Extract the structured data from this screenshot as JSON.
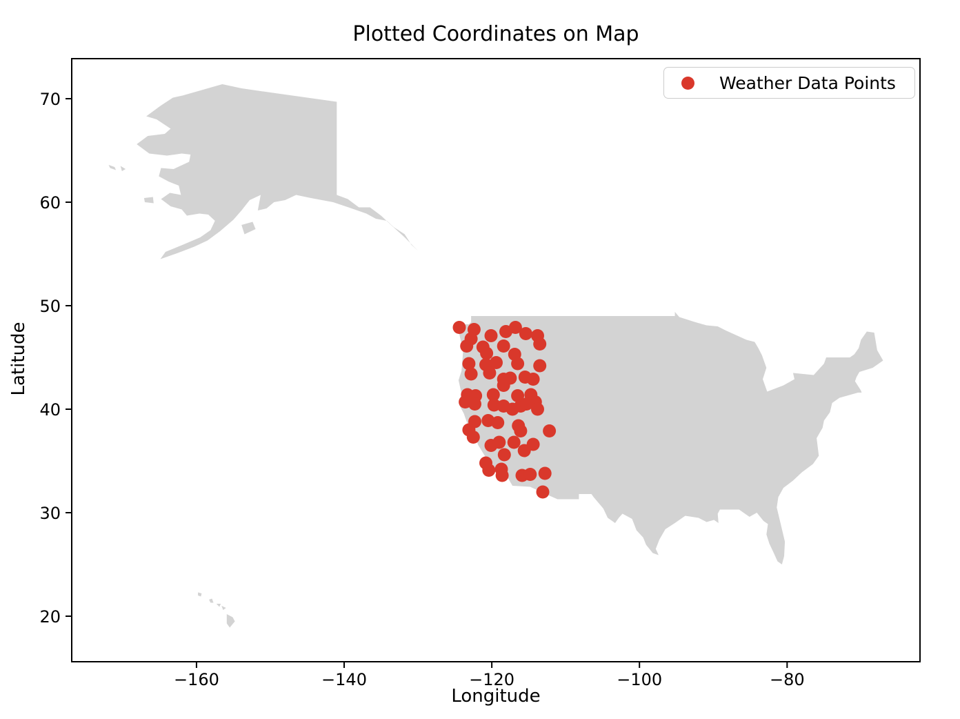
{
  "figure": {
    "title": "Plotted Coordinates on Map",
    "xlabel": "Longitude",
    "ylabel": "Latitude"
  },
  "legend": {
    "label": "Weather Data Points",
    "marker": "red-dot-icon"
  },
  "colors": {
    "marker": "#d9382b",
    "land": "#d3d3d3",
    "spine": "#000000",
    "background": "#ffffff",
    "legend_border": "#cccccc"
  },
  "chart_data": {
    "type": "scatter",
    "title": "Plotted Coordinates on Map",
    "xlabel": "Longitude",
    "ylabel": "Latitude",
    "legend": {
      "label": "Weather Data Points",
      "position": "upper right"
    },
    "grid": false,
    "xlim": [
      -176.9,
      -62.0
    ],
    "ylim": [
      15.6,
      73.87
    ],
    "xticks": [
      -160,
      -140,
      -120,
      -100,
      -80
    ],
    "yticks": [
      20,
      30,
      40,
      50,
      60,
      70
    ],
    "marker_color": "#d9382b",
    "marker_radius_px": 9.5,
    "series": [
      {
        "name": "Weather Data Points",
        "points_lon_lat": [
          [
            -124.4,
            47.9
          ],
          [
            -122.4,
            47.7
          ],
          [
            -122.8,
            46.8
          ],
          [
            -120.1,
            47.1
          ],
          [
            -118.1,
            47.5
          ],
          [
            -116.8,
            47.9
          ],
          [
            -115.4,
            47.3
          ],
          [
            -113.8,
            47.1
          ],
          [
            -113.5,
            46.3
          ],
          [
            -123.4,
            46.1
          ],
          [
            -121.2,
            46.0
          ],
          [
            -118.4,
            46.1
          ],
          [
            -120.7,
            45.4
          ],
          [
            -116.9,
            45.3
          ],
          [
            -116.5,
            44.4
          ],
          [
            -123.1,
            44.4
          ],
          [
            -120.8,
            44.3
          ],
          [
            -119.4,
            44.5
          ],
          [
            -113.5,
            44.2
          ],
          [
            -122.8,
            43.4
          ],
          [
            -120.3,
            43.5
          ],
          [
            -118.4,
            42.9
          ],
          [
            -117.5,
            43.0
          ],
          [
            -115.5,
            43.1
          ],
          [
            -114.4,
            42.9
          ],
          [
            -123.3,
            41.4
          ],
          [
            -122.2,
            41.3
          ],
          [
            -119.8,
            41.4
          ],
          [
            -118.4,
            42.3
          ],
          [
            -123.6,
            40.7
          ],
          [
            -119.7,
            40.4
          ],
          [
            -118.4,
            40.3
          ],
          [
            -116.5,
            41.3
          ],
          [
            -114.7,
            41.4
          ],
          [
            -114.1,
            40.7
          ],
          [
            -116.1,
            40.3
          ],
          [
            -122.3,
            40.5
          ],
          [
            -117.2,
            40.0
          ],
          [
            -115.3,
            40.5
          ],
          [
            -113.8,
            40.0
          ],
          [
            -122.3,
            38.8
          ],
          [
            -120.5,
            38.9
          ],
          [
            -119.2,
            38.7
          ],
          [
            -123.1,
            38.0
          ],
          [
            -122.5,
            37.3
          ],
          [
            -116.4,
            38.4
          ],
          [
            -116.1,
            37.9
          ],
          [
            -112.2,
            37.9
          ],
          [
            -120.1,
            36.5
          ],
          [
            -119.0,
            36.8
          ],
          [
            -117.0,
            36.8
          ],
          [
            -114.4,
            36.6
          ],
          [
            -115.6,
            36.0
          ],
          [
            -118.3,
            35.6
          ],
          [
            -120.8,
            34.8
          ],
          [
            -120.4,
            34.1
          ],
          [
            -118.7,
            34.2
          ],
          [
            -118.6,
            33.6
          ],
          [
            -115.9,
            33.6
          ],
          [
            -114.8,
            33.7
          ],
          [
            -112.8,
            33.8
          ],
          [
            -113.1,
            32.0
          ]
        ]
      }
    ],
    "basemap": {
      "fill": "#d3d3d3",
      "shapes": {
        "contiguous_us": [
          [
            -122.8,
            49.0
          ],
          [
            -95.2,
            49.0
          ],
          [
            -95.2,
            49.4
          ],
          [
            -94.6,
            48.9
          ],
          [
            -92.4,
            48.4
          ],
          [
            -90.9,
            48.1
          ],
          [
            -89.4,
            48.0
          ],
          [
            -88.3,
            47.6
          ],
          [
            -85.5,
            46.7
          ],
          [
            -84.4,
            46.5
          ],
          [
            -83.9,
            45.9
          ],
          [
            -83.4,
            45.2
          ],
          [
            -82.8,
            44.0
          ],
          [
            -83.3,
            42.9
          ],
          [
            -82.7,
            41.7
          ],
          [
            -80.5,
            42.3
          ],
          [
            -79.0,
            42.9
          ],
          [
            -79.2,
            43.5
          ],
          [
            -76.4,
            43.3
          ],
          [
            -75.0,
            44.4
          ],
          [
            -74.7,
            45.0
          ],
          [
            -71.5,
            45.0
          ],
          [
            -70.9,
            45.3
          ],
          [
            -70.3,
            45.9
          ],
          [
            -70.0,
            46.7
          ],
          [
            -69.2,
            47.5
          ],
          [
            -68.2,
            47.4
          ],
          [
            -67.8,
            45.7
          ],
          [
            -67.4,
            45.2
          ],
          [
            -67.0,
            44.7
          ],
          [
            -68.4,
            44.0
          ],
          [
            -70.2,
            43.6
          ],
          [
            -70.6,
            43.1
          ],
          [
            -70.8,
            42.7
          ],
          [
            -70.0,
            41.8
          ],
          [
            -69.9,
            41.6
          ],
          [
            -70.4,
            41.6
          ],
          [
            -71.4,
            41.4
          ],
          [
            -72.9,
            41.1
          ],
          [
            -73.9,
            40.6
          ],
          [
            -74.2,
            39.7
          ],
          [
            -75.0,
            38.9
          ],
          [
            -75.2,
            38.2
          ],
          [
            -76.0,
            37.2
          ],
          [
            -75.7,
            35.5
          ],
          [
            -76.5,
            34.7
          ],
          [
            -78.0,
            33.9
          ],
          [
            -79.2,
            33.1
          ],
          [
            -80.5,
            32.4
          ],
          [
            -81.2,
            31.5
          ],
          [
            -81.4,
            30.5
          ],
          [
            -80.9,
            29.0
          ],
          [
            -80.3,
            27.2
          ],
          [
            -80.4,
            25.8
          ],
          [
            -80.7,
            25.0
          ],
          [
            -81.3,
            25.3
          ],
          [
            -81.8,
            26.1
          ],
          [
            -82.4,
            27.0
          ],
          [
            -82.8,
            27.9
          ],
          [
            -82.6,
            28.9
          ],
          [
            -83.2,
            29.2
          ],
          [
            -84.1,
            30.0
          ],
          [
            -85.1,
            29.6
          ],
          [
            -86.5,
            30.3
          ],
          [
            -88.0,
            30.3
          ],
          [
            -89.1,
            30.3
          ],
          [
            -89.4,
            29.9
          ],
          [
            -89.3,
            29.0
          ],
          [
            -89.9,
            29.3
          ],
          [
            -90.9,
            29.1
          ],
          [
            -92.0,
            29.5
          ],
          [
            -93.8,
            29.7
          ],
          [
            -95.2,
            29.0
          ],
          [
            -96.5,
            28.4
          ],
          [
            -97.3,
            27.4
          ],
          [
            -97.8,
            26.5
          ],
          [
            -97.4,
            25.9
          ],
          [
            -98.2,
            26.1
          ],
          [
            -99.1,
            26.9
          ],
          [
            -99.5,
            27.6
          ],
          [
            -100.4,
            28.3
          ],
          [
            -101.0,
            29.4
          ],
          [
            -102.3,
            29.9
          ],
          [
            -102.8,
            29.5
          ],
          [
            -103.3,
            29.0
          ],
          [
            -104.3,
            29.5
          ],
          [
            -104.9,
            30.4
          ],
          [
            -106.2,
            31.5
          ],
          [
            -106.5,
            31.8
          ],
          [
            -108.2,
            31.8
          ],
          [
            -108.2,
            31.3
          ],
          [
            -111.1,
            31.3
          ],
          [
            -113.0,
            31.9
          ],
          [
            -114.8,
            32.5
          ],
          [
            -117.2,
            32.6
          ],
          [
            -118.1,
            33.7
          ],
          [
            -119.0,
            34.1
          ],
          [
            -120.5,
            34.5
          ],
          [
            -120.7,
            35.2
          ],
          [
            -121.9,
            36.6
          ],
          [
            -122.0,
            37.0
          ],
          [
            -122.5,
            37.8
          ],
          [
            -123.0,
            38.0
          ],
          [
            -123.8,
            39.6
          ],
          [
            -124.4,
            40.4
          ],
          [
            -124.1,
            41.5
          ],
          [
            -124.5,
            42.8
          ],
          [
            -124.1,
            43.7
          ],
          [
            -123.9,
            45.5
          ],
          [
            -124.1,
            46.3
          ],
          [
            -124.7,
            48.2
          ],
          [
            -123.1,
            48.2
          ],
          [
            -122.8,
            48.4
          ]
        ],
        "alaska": [
          [
            -166.8,
            68.3
          ],
          [
            -164.9,
            69.3
          ],
          [
            -163.2,
            70.1
          ],
          [
            -161.9,
            70.3
          ],
          [
            -156.5,
            71.4
          ],
          [
            -153.9,
            71.0
          ],
          [
            -150.0,
            70.6
          ],
          [
            -145.0,
            70.1
          ],
          [
            -141.0,
            69.7
          ],
          [
            -141.0,
            60.7
          ],
          [
            -139.5,
            60.3
          ],
          [
            -138.0,
            59.5
          ],
          [
            -136.5,
            59.5
          ],
          [
            -135.0,
            58.7
          ],
          [
            -133.5,
            57.7
          ],
          [
            -131.8,
            56.6
          ],
          [
            -130.0,
            55.3
          ],
          [
            -130.9,
            55.9
          ],
          [
            -131.8,
            56.9
          ],
          [
            -133.3,
            57.6
          ],
          [
            -134.2,
            58.2
          ],
          [
            -135.7,
            58.4
          ],
          [
            -137.0,
            58.9
          ],
          [
            -139.0,
            59.4
          ],
          [
            -141.5,
            60.0
          ],
          [
            -144.5,
            60.4
          ],
          [
            -146.5,
            60.7
          ],
          [
            -148.0,
            60.2
          ],
          [
            -149.5,
            60.0
          ],
          [
            -150.5,
            59.4
          ],
          [
            -151.7,
            59.2
          ],
          [
            -151.3,
            60.7
          ],
          [
            -152.8,
            60.2
          ],
          [
            -153.9,
            59.2
          ],
          [
            -155.0,
            58.3
          ],
          [
            -156.8,
            57.2
          ],
          [
            -158.5,
            56.3
          ],
          [
            -160.3,
            55.7
          ],
          [
            -162.5,
            55.1
          ],
          [
            -164.9,
            54.5
          ],
          [
            -164.2,
            55.2
          ],
          [
            -161.8,
            55.9
          ],
          [
            -159.5,
            56.6
          ],
          [
            -158.1,
            57.3
          ],
          [
            -157.5,
            58.2
          ],
          [
            -158.4,
            58.8
          ],
          [
            -159.6,
            58.9
          ],
          [
            -161.3,
            58.7
          ],
          [
            -162.0,
            59.3
          ],
          [
            -163.5,
            59.6
          ],
          [
            -164.8,
            60.3
          ],
          [
            -163.6,
            60.9
          ],
          [
            -162.1,
            60.7
          ],
          [
            -162.4,
            61.6
          ],
          [
            -163.8,
            62.0
          ],
          [
            -165.1,
            62.5
          ],
          [
            -164.8,
            63.3
          ],
          [
            -163.1,
            63.2
          ],
          [
            -161.0,
            63.9
          ],
          [
            -160.8,
            64.6
          ],
          [
            -162.0,
            64.7
          ],
          [
            -164.0,
            64.5
          ],
          [
            -166.4,
            64.7
          ],
          [
            -168.1,
            65.6
          ],
          [
            -166.6,
            66.4
          ],
          [
            -164.3,
            66.6
          ],
          [
            -163.5,
            67.1
          ],
          [
            -165.4,
            68.0
          ]
        ],
        "kodiak_island": [
          [
            -153.9,
            57.8
          ],
          [
            -152.4,
            58.1
          ],
          [
            -152.0,
            57.4
          ],
          [
            -153.5,
            56.9
          ]
        ],
        "st_lawrence_island_west": [
          [
            -171.9,
            63.6
          ],
          [
            -171.1,
            63.4
          ],
          [
            -170.9,
            63.1
          ],
          [
            -171.7,
            63.3
          ]
        ],
        "st_lawrence_island_east": [
          [
            -170.3,
            63.5
          ],
          [
            -169.6,
            63.2
          ],
          [
            -170.1,
            63.0
          ]
        ],
        "nunivak_island": [
          [
            -167.1,
            60.4
          ],
          [
            -165.9,
            60.5
          ],
          [
            -165.8,
            59.9
          ],
          [
            -167.0,
            60.0
          ]
        ],
        "hawaii": [
          [
            [
              -159.8,
              22.3
            ],
            [
              -159.3,
              22.2
            ],
            [
              -159.4,
              21.9
            ],
            [
              -159.8,
              22.0
            ]
          ],
          [
            [
              -158.3,
              21.6
            ],
            [
              -157.9,
              21.7
            ],
            [
              -157.7,
              21.3
            ],
            [
              -158.1,
              21.3
            ]
          ],
          [
            [
              -157.3,
              21.2
            ],
            [
              -156.7,
              21.2
            ],
            [
              -156.9,
              20.9
            ]
          ],
          [
            [
              -156.6,
              21.0
            ],
            [
              -156.0,
              20.8
            ],
            [
              -156.4,
              20.6
            ]
          ],
          [
            [
              -155.9,
              20.2
            ],
            [
              -155.1,
              19.9
            ],
            [
              -154.8,
              19.5
            ],
            [
              -155.5,
              18.9
            ],
            [
              -155.9,
              19.3
            ]
          ]
        ]
      }
    }
  }
}
